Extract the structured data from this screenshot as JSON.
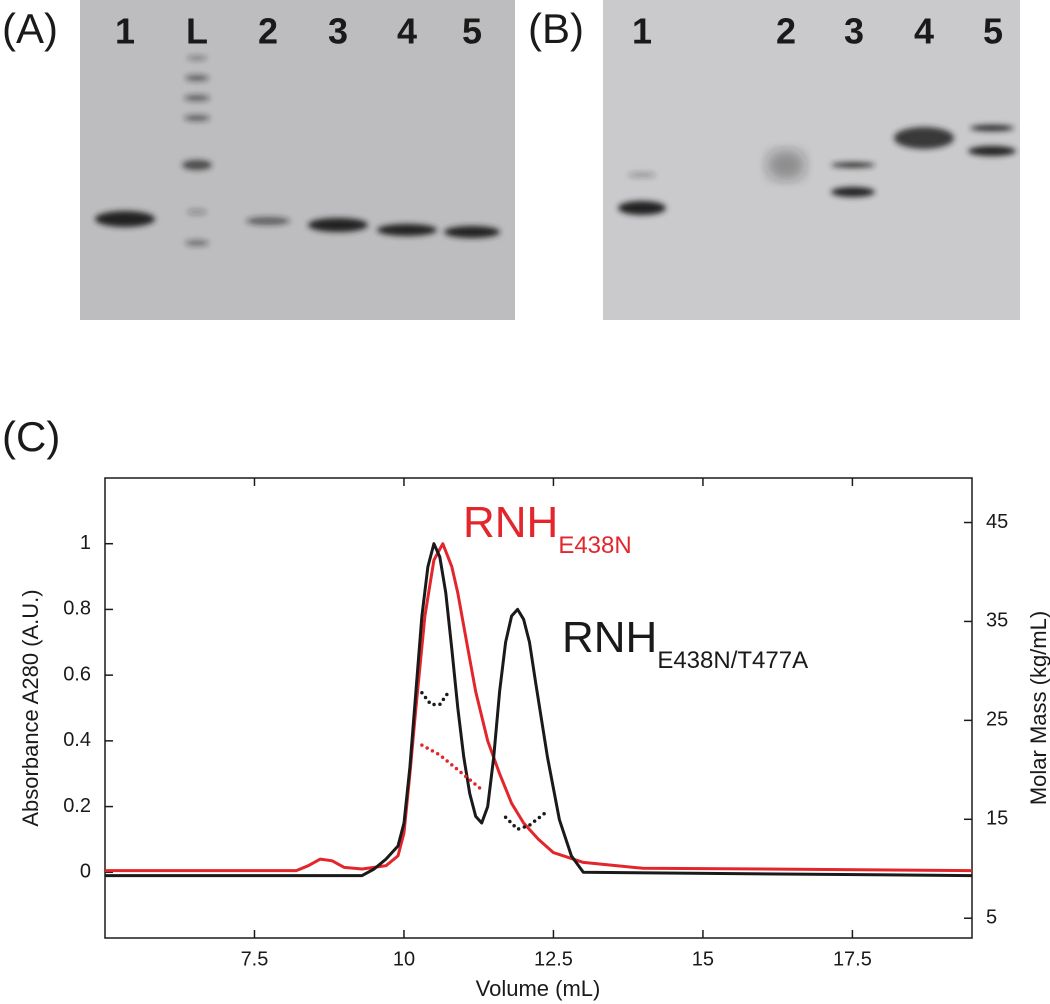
{
  "gels": [
    {
      "label": "(A)",
      "lanes": [
        "1",
        "L",
        "2",
        "3",
        "4",
        "5"
      ]
    },
    {
      "label": "(B)",
      "lanes": [
        "1",
        "2",
        "3",
        "4",
        "5"
      ]
    }
  ],
  "chart_data": {
    "type": "line",
    "label": "(C)",
    "x_label": "Volume (mL)",
    "y_label": "Absorbance A280 (A.U.)",
    "y2_label": "Molar Mass (kg/mL)",
    "xlim": [
      5,
      19.5
    ],
    "xticks": [
      7.5,
      10,
      12.5,
      15,
      17.5
    ],
    "ylim": [
      -0.2,
      1.2
    ],
    "yticks": [
      0,
      0.2,
      0.4,
      0.6,
      0.8,
      1
    ],
    "y2lim": [
      3,
      49.5
    ],
    "y2ticks": [
      5,
      15,
      25,
      35,
      45
    ],
    "annotations": [
      {
        "text": "RNH",
        "sub": "E438N",
        "color": "#e3262b"
      },
      {
        "text": "RNH",
        "sub": "E438N/T477A",
        "color": "#1a1a1a"
      }
    ],
    "series": [
      {
        "color": "#e3262b",
        "style": "solid",
        "x": [
          5,
          8.2,
          8.4,
          8.6,
          8.8,
          9.0,
          9.3,
          9.7,
          9.9,
          10.0,
          10.1,
          10.2,
          10.35,
          10.5,
          10.65,
          10.8,
          10.9,
          11.05,
          11.2,
          11.4,
          11.6,
          11.8,
          12.0,
          12.25,
          12.5,
          13.0,
          14.0,
          16.0,
          19.5
        ],
        "values": [
          0.005,
          0.005,
          0.02,
          0.04,
          0.035,
          0.015,
          0.01,
          0.02,
          0.05,
          0.12,
          0.3,
          0.5,
          0.78,
          0.95,
          1.0,
          0.93,
          0.85,
          0.7,
          0.55,
          0.4,
          0.3,
          0.21,
          0.15,
          0.1,
          0.06,
          0.03,
          0.012,
          0.01,
          0.005
        ]
      },
      {
        "color": "#1a1a1a",
        "style": "solid",
        "x": [
          5,
          9.3,
          9.5,
          9.7,
          9.9,
          10.0,
          10.1,
          10.2,
          10.3,
          10.4,
          10.5,
          10.6,
          10.7,
          10.8,
          10.9,
          11.0,
          11.1,
          11.2,
          11.3,
          11.4,
          11.5,
          11.6,
          11.7,
          11.8,
          11.9,
          12.0,
          12.1,
          12.2,
          12.4,
          12.6,
          12.8,
          13.0,
          19.5
        ],
        "values": [
          -0.01,
          -0.01,
          0.01,
          0.04,
          0.08,
          0.15,
          0.32,
          0.55,
          0.78,
          0.93,
          1.0,
          0.96,
          0.85,
          0.68,
          0.5,
          0.35,
          0.24,
          0.17,
          0.15,
          0.2,
          0.35,
          0.55,
          0.7,
          0.78,
          0.8,
          0.77,
          0.7,
          0.58,
          0.35,
          0.16,
          0.05,
          0.0,
          -0.01
        ]
      },
      {
        "color": "#1a1a1a",
        "style": "dotted",
        "axis": "y2",
        "x": [
          10.3,
          10.45,
          10.6,
          10.75
        ],
        "values": [
          27.8,
          26.6,
          26.6,
          27.9
        ]
      },
      {
        "color": "#1a1a1a",
        "style": "dotted",
        "axis": "y2",
        "x": [
          11.7,
          11.9,
          12.1,
          12.35
        ],
        "values": [
          15.2,
          14.0,
          14.4,
          15.6
        ]
      },
      {
        "color": "#e3262b",
        "style": "dotted",
        "axis": "y2",
        "x": [
          10.3,
          10.6,
          10.9,
          11.3
        ],
        "values": [
          22.5,
          21.5,
          20.0,
          18.0
        ]
      }
    ]
  }
}
